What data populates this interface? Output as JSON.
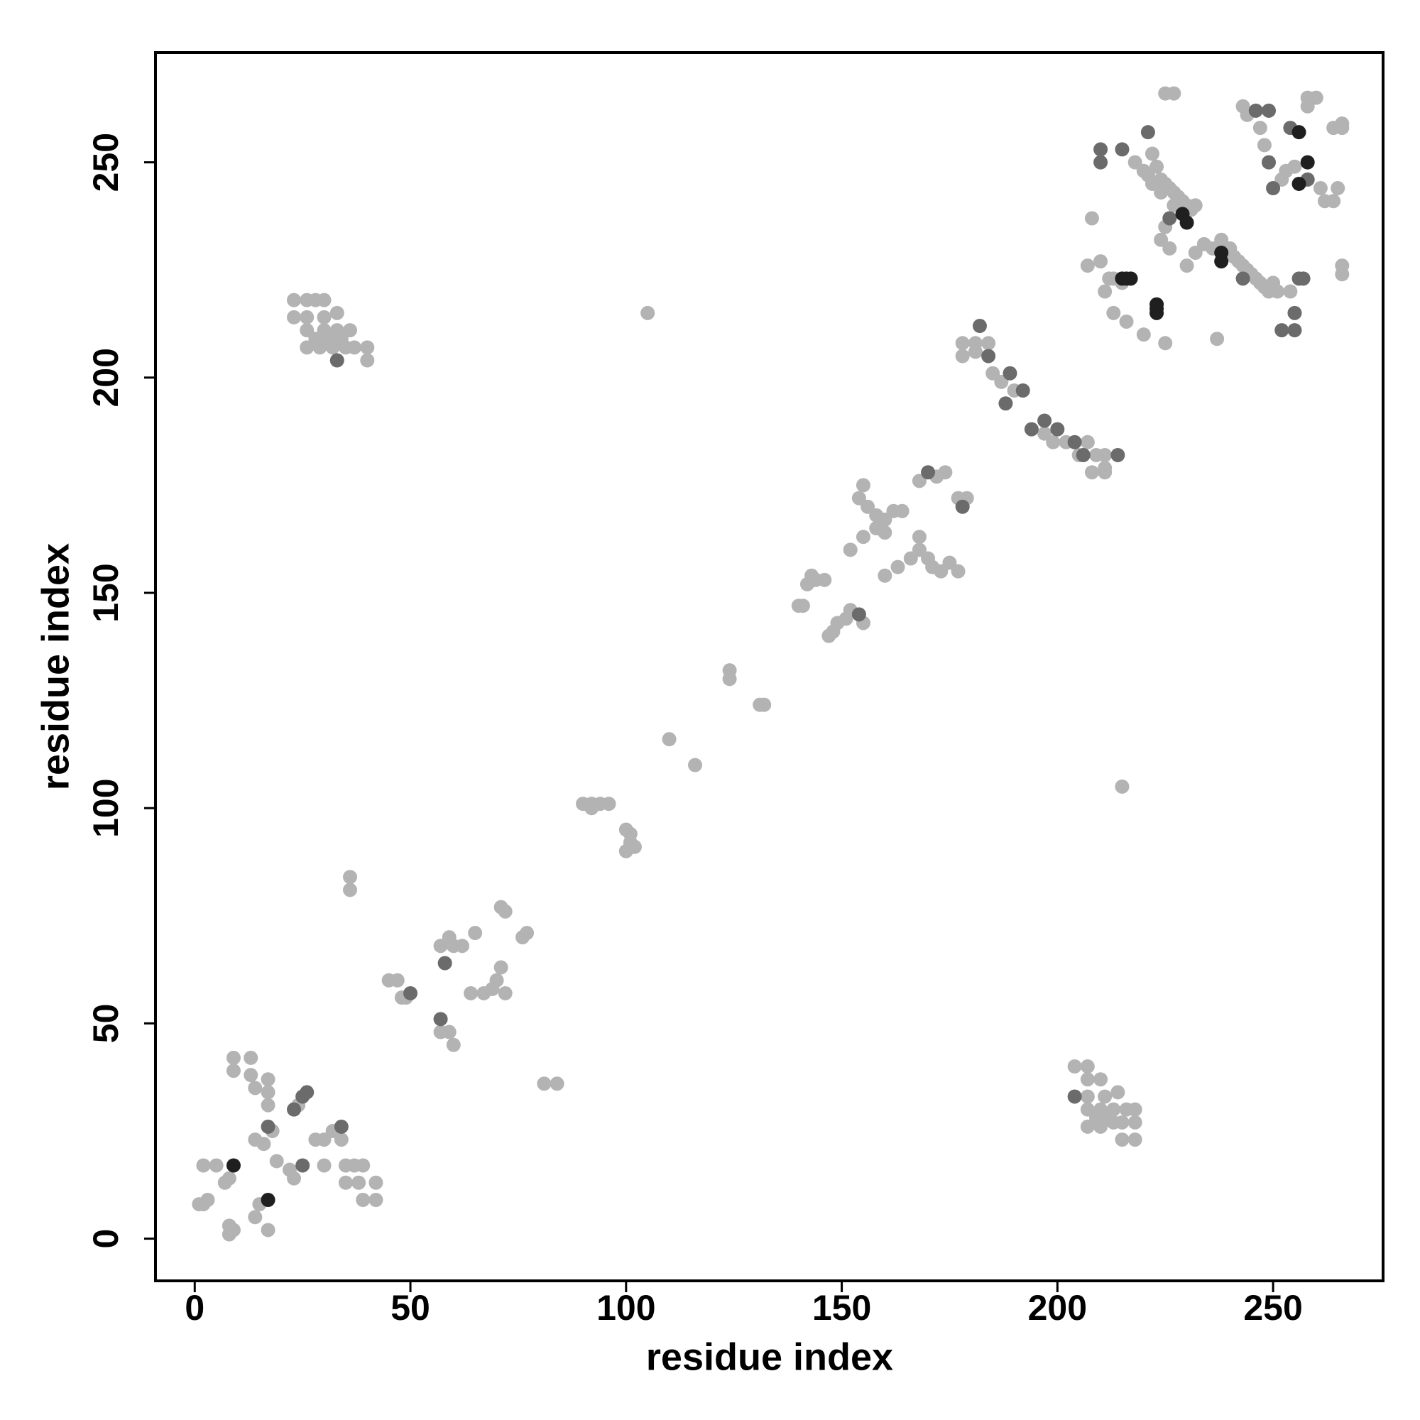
{
  "chart_data": {
    "type": "scatter",
    "xlabel": "residue index",
    "ylabel": "residue index",
    "xlim": [
      -9.1,
      275.5
    ],
    "ylim": [
      -9.8,
      275.5
    ],
    "xticks": [
      0,
      50,
      100,
      150,
      200,
      250
    ],
    "yticks": [
      0,
      50,
      100,
      150,
      200,
      250
    ],
    "series": [
      {
        "color": "#b3b3b3",
        "x": [
          1,
          2,
          3,
          2,
          5,
          7,
          8,
          8,
          9,
          8,
          14,
          15,
          17,
          9,
          9,
          13,
          13,
          14,
          17,
          17,
          17,
          16,
          18,
          14,
          19,
          22,
          23,
          24,
          28,
          30,
          32,
          35,
          37,
          35,
          39,
          39,
          42,
          42,
          38,
          36,
          36,
          34,
          30,
          45,
          47,
          48,
          49,
          57,
          59,
          60,
          57,
          59,
          60,
          62,
          65,
          64,
          67,
          69,
          70,
          72,
          71,
          71,
          72,
          76,
          77,
          81,
          84,
          23,
          26,
          28,
          30,
          23,
          26,
          30,
          33,
          26,
          30,
          33,
          36,
          26,
          29,
          32,
          35,
          37,
          40,
          40,
          28,
          31,
          34,
          204,
          207,
          207,
          210,
          207,
          211,
          214,
          207,
          210,
          213,
          216,
          207,
          210,
          213,
          215,
          218,
          215,
          218,
          218,
          209,
          212,
          90,
          92,
          94,
          96,
          92,
          100,
          101,
          101,
          100,
          102,
          105,
          110,
          116,
          124,
          124,
          131,
          132,
          215,
          140,
          141,
          142,
          143,
          144,
          146,
          147,
          148,
          149,
          151,
          152,
          155,
          154,
          155,
          156,
          158,
          160,
          162,
          164,
          158,
          160,
          152,
          155,
          160,
          163,
          166,
          168,
          168,
          170,
          171,
          173,
          175,
          177,
          172,
          174,
          177,
          179,
          168,
          178,
          181,
          184,
          178,
          181,
          185,
          187,
          190,
          197,
          199,
          202,
          205,
          207,
          209,
          211,
          211,
          208,
          211,
          218,
          220,
          221,
          222,
          223,
          224,
          225,
          226,
          227,
          228,
          229,
          230,
          231,
          232,
          222,
          224,
          227,
          236,
          238,
          240,
          241,
          242,
          243,
          244,
          245,
          246,
          247,
          248,
          249,
          250,
          251,
          213,
          211,
          212,
          210,
          213,
          216,
          220,
          225,
          237,
          232,
          234,
          225,
          224,
          226,
          230,
          225,
          227,
          208,
          207,
          215,
          254,
          243,
          244,
          247,
          248,
          252,
          253,
          255,
          258,
          260,
          258,
          261,
          262,
          264,
          265,
          264,
          266,
          266,
          266,
          266
        ],
        "y": [
          8,
          8,
          9,
          17,
          17,
          13,
          14,
          1,
          2,
          3,
          5,
          8,
          2,
          42,
          39,
          42,
          38,
          35,
          37,
          34,
          31,
          22,
          25,
          23,
          18,
          16,
          14,
          31,
          23,
          23,
          25,
          17,
          17,
          13,
          17,
          9,
          9,
          13,
          13,
          84,
          81,
          23,
          17,
          60,
          60,
          56,
          56,
          48,
          48,
          45,
          68,
          70,
          68,
          68,
          71,
          57,
          57,
          58,
          60,
          57,
          63,
          77,
          76,
          70,
          71,
          36,
          36,
          218,
          218,
          218,
          218,
          214,
          214,
          214,
          215,
          211,
          211,
          211,
          211,
          207,
          207,
          207,
          207,
          207,
          207,
          204,
          209,
          209,
          209,
          40,
          40,
          37,
          37,
          33,
          33,
          34,
          30,
          30,
          30,
          30,
          26,
          26,
          27,
          27,
          27,
          23,
          23,
          30,
          28,
          28,
          101,
          101,
          101,
          101,
          100,
          95,
          94,
          92,
          90,
          91,
          215,
          116,
          110,
          132,
          130,
          124,
          124,
          105,
          147,
          147,
          152,
          154,
          153,
          153,
          140,
          141,
          143,
          144,
          146,
          143,
          172,
          175,
          170,
          168,
          167,
          169,
          169,
          165,
          164,
          160,
          163,
          154,
          156,
          158,
          160,
          163,
          158,
          156,
          155,
          157,
          155,
          177,
          178,
          172,
          172,
          176,
          208,
          208,
          208,
          205,
          206,
          201,
          199,
          197,
          187,
          185,
          185,
          182,
          185,
          182,
          182,
          179,
          178,
          178,
          250,
          248,
          247,
          252,
          249,
          246,
          245,
          244,
          243,
          242,
          241,
          240,
          239,
          240,
          245,
          243,
          240,
          230,
          232,
          230,
          228,
          227,
          226,
          225,
          224,
          223,
          222,
          221,
          220,
          222,
          220,
          223,
          220,
          223,
          227,
          215,
          213,
          210,
          208,
          209,
          229,
          231,
          235,
          232,
          230,
          226,
          266,
          266,
          237,
          226,
          222,
          220,
          263,
          261,
          258,
          254,
          246,
          248,
          249,
          265,
          265,
          263,
          244,
          241,
          241,
          244,
          258,
          258,
          259,
          226,
          224
        ]
      },
      {
        "color": "#6b6b6b",
        "x": [
          17,
          25,
          25,
          23,
          26,
          34,
          50,
          57,
          58,
          33,
          204,
          154,
          170,
          178,
          182,
          184,
          189,
          192,
          188,
          194,
          197,
          200,
          204,
          206,
          214,
          226,
          243,
          210,
          210,
          215,
          221,
          252,
          255,
          255,
          256,
          246,
          249,
          249,
          250,
          258,
          254,
          257
        ],
        "y": [
          26,
          17,
          33,
          30,
          34,
          26,
          57,
          51,
          64,
          204,
          33,
          145,
          178,
          170,
          212,
          205,
          201,
          197,
          194,
          188,
          190,
          188,
          185,
          182,
          182,
          237,
          223,
          253,
          250,
          253,
          257,
          211,
          211,
          215,
          223,
          262,
          262,
          250,
          244,
          246,
          258,
          223
        ]
      },
      {
        "color": "#1f1f1f",
        "x": [
          9,
          17,
          229,
          230,
          238,
          238,
          215,
          216,
          217,
          223,
          223,
          223,
          256,
          258,
          256
        ],
        "y": [
          17,
          9,
          238,
          236,
          229,
          227,
          223,
          223,
          223,
          216,
          215,
          217,
          245,
          250,
          257
        ]
      }
    ]
  }
}
